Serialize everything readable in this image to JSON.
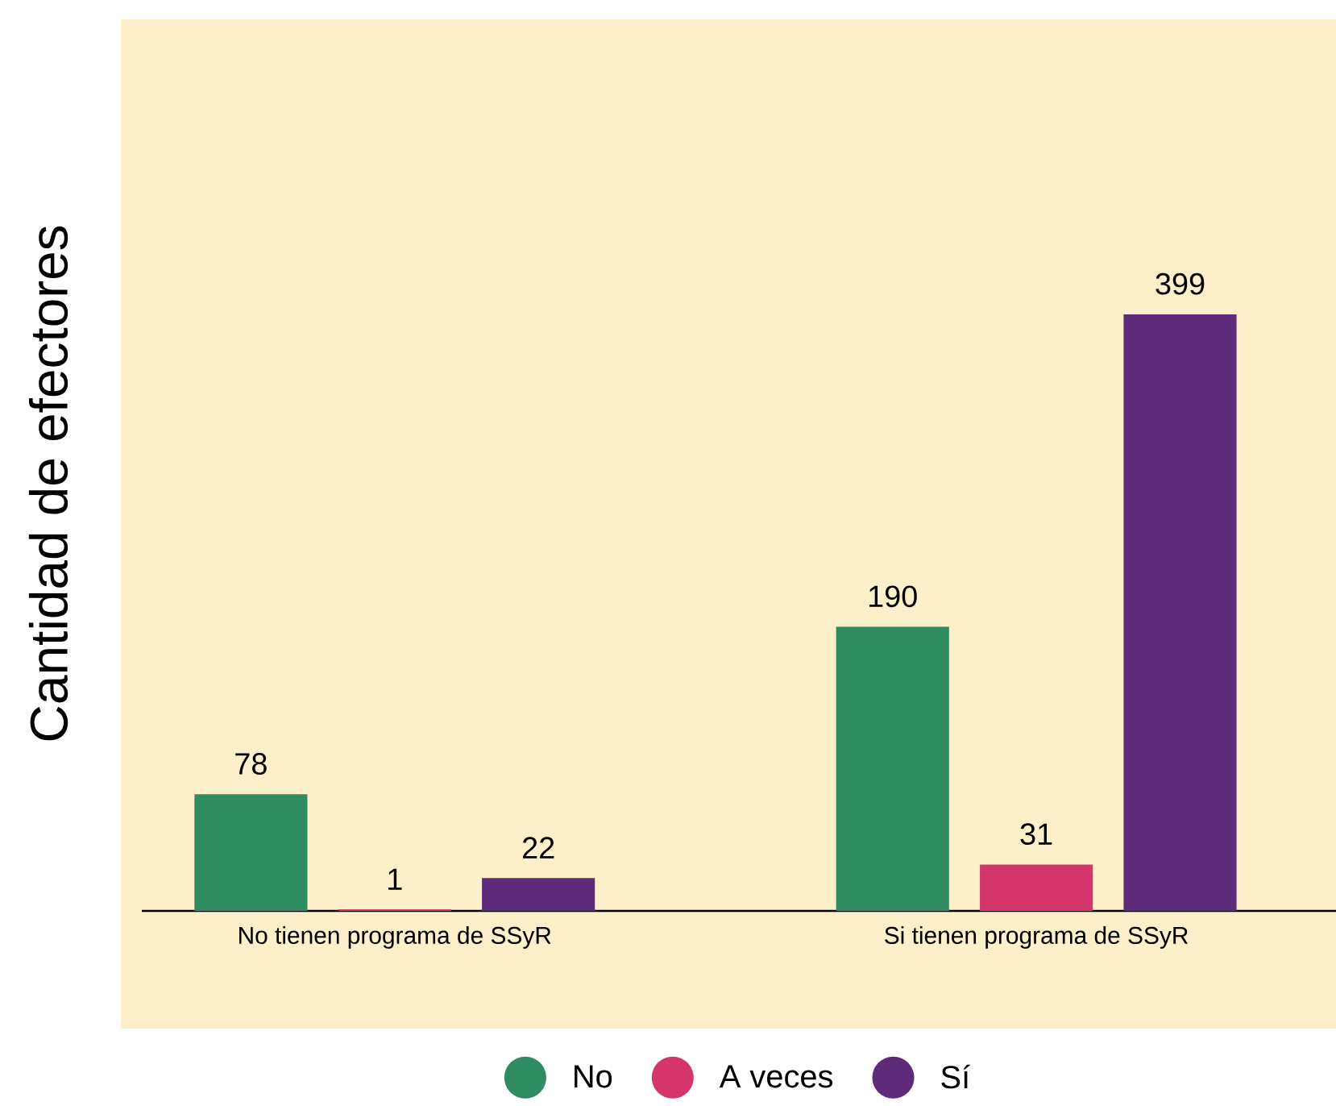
{
  "chart_data": {
    "type": "bar",
    "ylabel": "Cantidad de efectores",
    "categories": [
      "No tienen programa de SSyR",
      "Si tienen programa de SSyR"
    ],
    "series": [
      {
        "name": "No",
        "color": "#2e8b62",
        "values": [
          78,
          190
        ]
      },
      {
        "name": "A veces",
        "color": "#d4366b",
        "values": [
          1,
          31
        ]
      },
      {
        "name": "Sí",
        "color": "#5e2a7a",
        "values": [
          22,
          399
        ]
      }
    ],
    "data_labels": true,
    "legend": "bottom",
    "grid": false
  }
}
